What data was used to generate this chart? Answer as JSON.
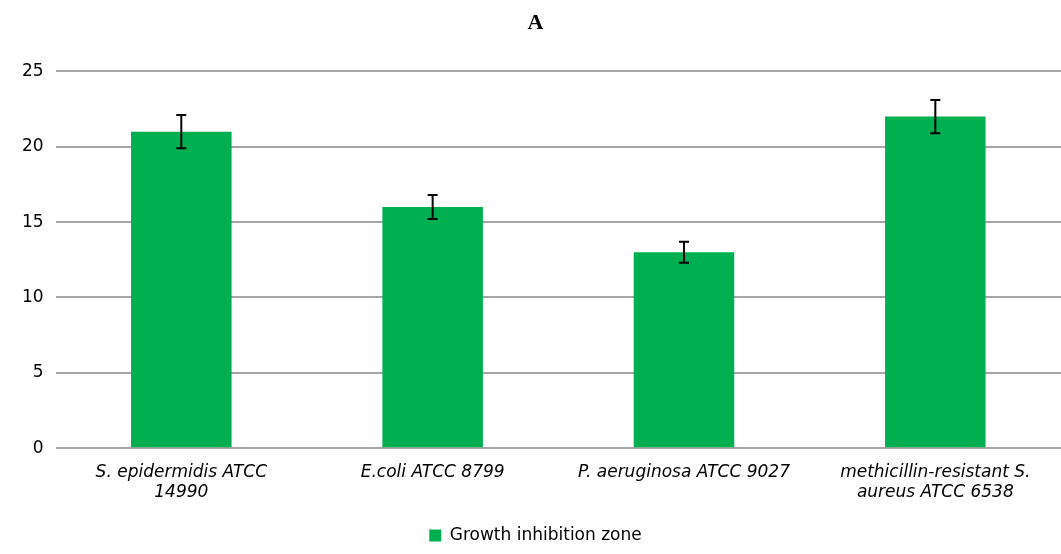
{
  "chart_data": {
    "type": "bar",
    "title": "A",
    "categories": [
      "S. epidermidis ATCC 14990",
      "E.coli ATCC 8799",
      "P. aeruginosa ATCC 9027",
      "methicillin-resistant S. aureus ATCC 6538"
    ],
    "series": [
      {
        "name": "Growth inhibition zone",
        "color": "#00b050",
        "values": [
          21,
          16,
          13,
          22
        ],
        "errors": [
          1.1,
          0.8,
          0.7,
          1.1
        ]
      }
    ],
    "ylim": [
      0,
      25
    ],
    "yticks": [
      0,
      5,
      10,
      15,
      20,
      25
    ],
    "grid": "y",
    "legend": "bottom"
  }
}
